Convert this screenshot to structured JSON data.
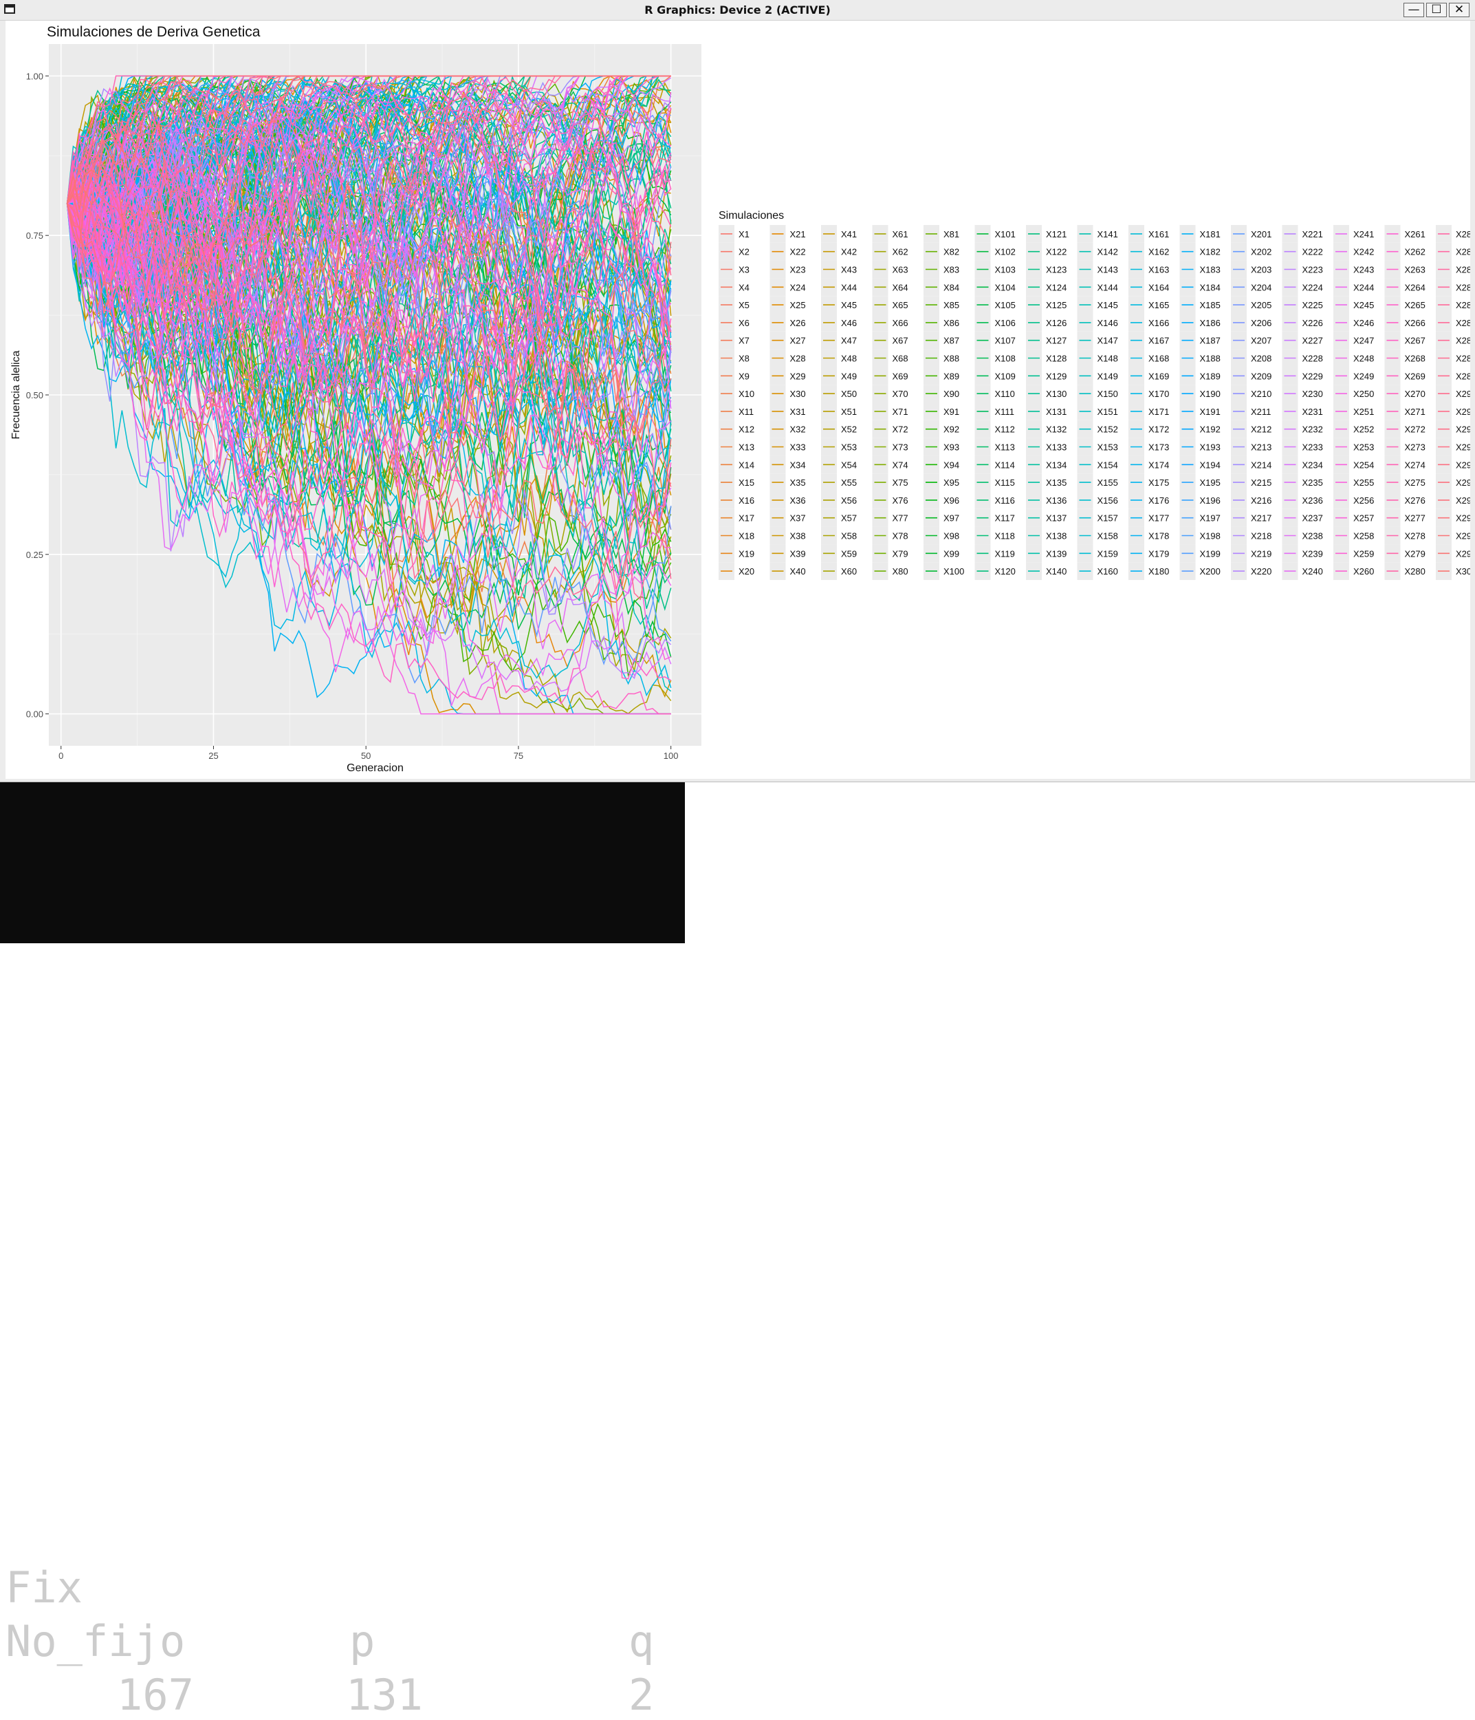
{
  "window": {
    "title": "R Graphics: Device 2 (ACTIVE)",
    "buttons": {
      "minimize": "—",
      "maximize": "☐",
      "close": "✕"
    }
  },
  "chart_data": {
    "type": "line",
    "title": "Simulaciones de Deriva Genetica",
    "xlabel": "Generacion",
    "ylabel": "Frecuencia alelica",
    "xlim": [
      -2,
      105
    ],
    "ylim": [
      -0.05,
      1.05
    ],
    "x_ticks": [
      0,
      25,
      50,
      75,
      100
    ],
    "x_tick_labels": [
      "0",
      "25",
      "50",
      "75",
      "100"
    ],
    "y_ticks": [
      0,
      0.25,
      0.5,
      0.75,
      1
    ],
    "y_tick_labels": [
      "0.00",
      "0.25",
      "0.50",
      "0.75",
      "1.00"
    ],
    "grid": true,
    "panel_background": "#ebebeb",
    "legend": {
      "title": "Simulaciones",
      "placement": "right",
      "columns": 15,
      "rows": 20
    },
    "x_range": [
      1,
      100
    ],
    "initial_p": 0.8,
    "n_series": 300,
    "series_prefix": "X",
    "hue_start": 15,
    "hue_span": 360
  },
  "console": {
    "line1": "Fix",
    "headers": [
      "No_fijo",
      "p",
      "q"
    ],
    "values": [
      "167",
      "131",
      "2"
    ]
  }
}
